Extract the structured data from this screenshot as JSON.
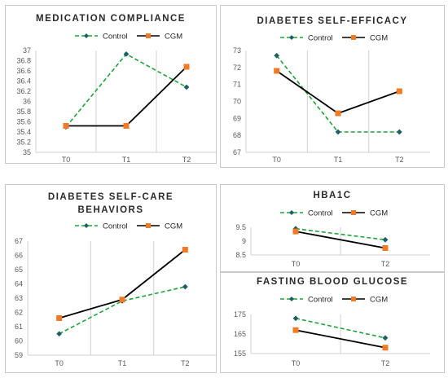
{
  "colors": {
    "control": "#1fa33a",
    "control_marker": "#1f5f63",
    "cgm_line": "#000000",
    "cgm_marker": "#f07a26",
    "grid": "#d0d0d0"
  },
  "legend": {
    "control": "Control",
    "cgm": "CGM"
  },
  "chart_data": [
    {
      "type": "line",
      "title": [
        "MEDICATION COMPLIANCE"
      ],
      "categories": [
        "T0",
        "T1",
        "T2"
      ],
      "ylim": [
        35,
        37
      ],
      "yticks": [
        "35",
        "35.2",
        "35.4",
        "35.6",
        "35.8",
        "36",
        "36.2",
        "36.4",
        "36.6",
        "36.8",
        "37"
      ],
      "series": [
        {
          "name": "Control",
          "values": [
            35.5,
            36.93,
            36.28
          ]
        },
        {
          "name": "CGM",
          "values": [
            35.52,
            35.52,
            36.68
          ]
        }
      ],
      "grid": "vertical"
    },
    {
      "type": "line",
      "title": [
        "DIABETES SELF-EFFICACY"
      ],
      "categories": [
        "T0",
        "T1",
        "T2"
      ],
      "ylim": [
        67,
        73
      ],
      "yticks": [
        "67",
        "68",
        "69",
        "70",
        "71",
        "72",
        "73"
      ],
      "series": [
        {
          "name": "Control",
          "values": [
            72.7,
            68.2,
            68.2
          ]
        },
        {
          "name": "CGM",
          "values": [
            71.8,
            69.3,
            70.6
          ]
        }
      ],
      "grid": "vertical"
    },
    {
      "type": "line",
      "title": [
        "DIABETES SELF-CARE",
        "BEHAVIORS"
      ],
      "categories": [
        "T0",
        "T1",
        "T2"
      ],
      "ylim": [
        59,
        67
      ],
      "yticks": [
        "59",
        "60",
        "61",
        "62",
        "63",
        "64",
        "65",
        "66",
        "67"
      ],
      "series": [
        {
          "name": "Control",
          "values": [
            60.5,
            62.8,
            63.8
          ]
        },
        {
          "name": "CGM",
          "values": [
            61.6,
            62.9,
            66.4
          ]
        }
      ],
      "grid": "vertical"
    },
    {
      "type": "line",
      "title": [
        "HBA1C"
      ],
      "categories": [
        "T0",
        "T2"
      ],
      "ylim": [
        8.5,
        9.5
      ],
      "yticks": [
        "8.5",
        "9",
        "9.5"
      ],
      "series": [
        {
          "name": "Control",
          "values": [
            9.45,
            9.05
          ]
        },
        {
          "name": "CGM",
          "values": [
            9.35,
            8.75
          ]
        }
      ],
      "grid": "vertical"
    },
    {
      "type": "line",
      "title": [
        "FASTING BLOOD GLUCOSE"
      ],
      "categories": [
        "T0",
        "T2"
      ],
      "ylim": [
        155,
        175
      ],
      "yticks": [
        "155",
        "165",
        "175"
      ],
      "series": [
        {
          "name": "Control",
          "values": [
            173,
            163
          ]
        },
        {
          "name": "CGM",
          "values": [
            167,
            158
          ]
        }
      ],
      "grid": "vertical"
    }
  ]
}
